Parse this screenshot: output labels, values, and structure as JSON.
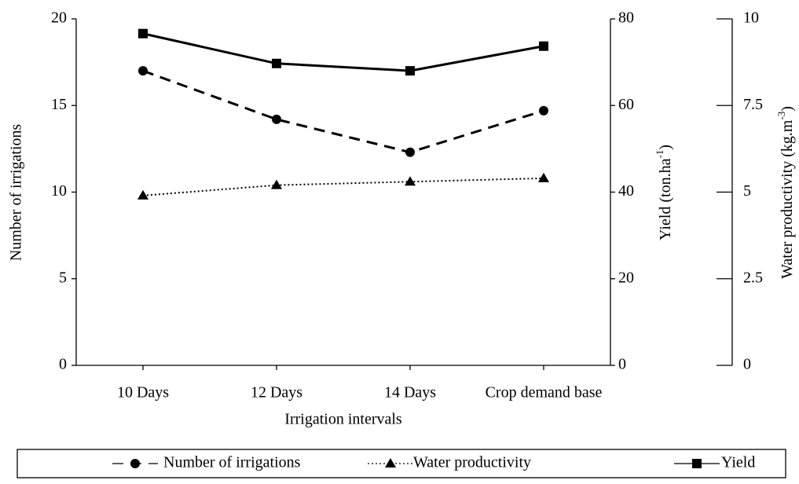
{
  "chart_data": {
    "type": "line",
    "categories": [
      "10 Days",
      "12 Days",
      "14 Days",
      "Crop demand base"
    ],
    "xlabel": "Irrigation intervals",
    "ylabel": "Number of irrigations",
    "y2label": {
      "text": "Yield  (ton.ha",
      "sup": "-1",
      "end": ")"
    },
    "y3label": {
      "text": "Water productivity (kg.m",
      "sup": "-3",
      "end": ")"
    },
    "ylim": [
      0,
      20
    ],
    "yticks": [
      0,
      5,
      10,
      15,
      20
    ],
    "y2lim": [
      0,
      80
    ],
    "y2ticks": [
      0,
      20,
      40,
      60,
      80
    ],
    "y3lim": [
      0,
      10
    ],
    "y3ticks": [
      0,
      2.5,
      5,
      7.5,
      10
    ],
    "legend": "bottom",
    "series": [
      {
        "name": "Number of irrigations",
        "color": "#000000",
        "dash": "dashed",
        "marker": "circle",
        "axis": "y",
        "values": [
          17.0,
          14.2,
          12.3,
          14.7
        ]
      },
      {
        "name": "Water productivity",
        "color": "#000000",
        "dash": "dotted",
        "marker": "triangle",
        "axis": "y3",
        "values": [
          4.9,
          5.2,
          5.3,
          5.4
        ]
      },
      {
        "name": "Yield",
        "color": "#000000",
        "dash": "solid",
        "marker": "square",
        "axis": "y2",
        "values": [
          76.6,
          69.7,
          68.0,
          73.7
        ]
      }
    ]
  }
}
